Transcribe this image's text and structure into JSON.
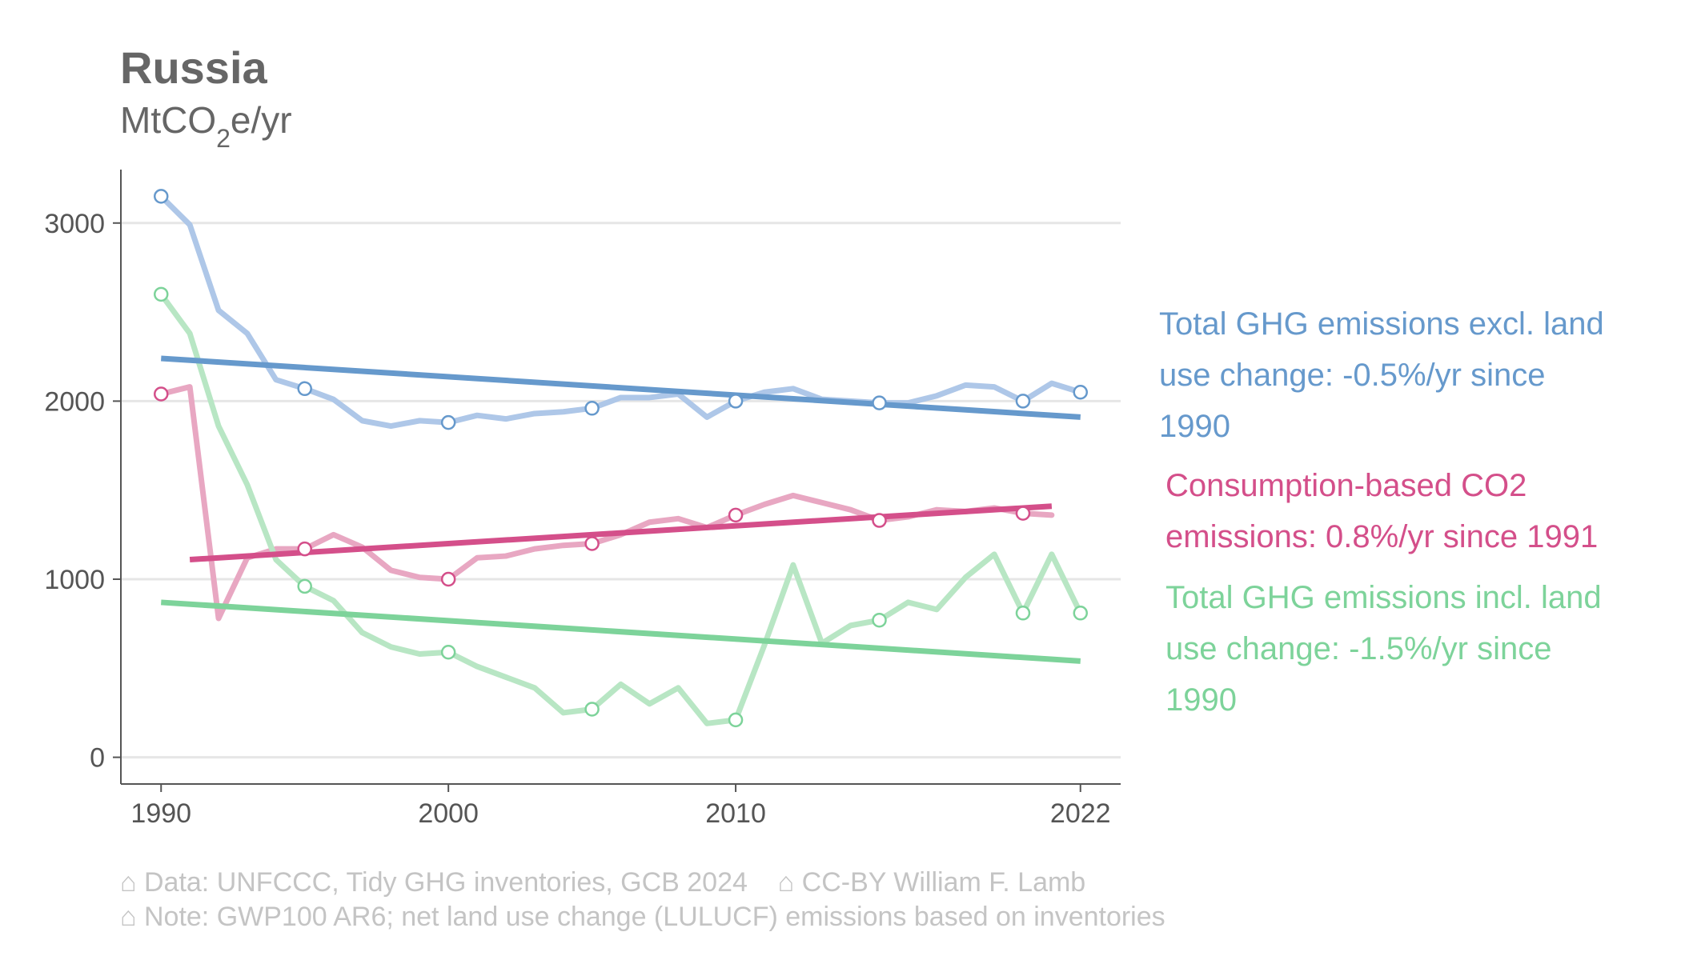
{
  "chart_data": {
    "type": "line",
    "title": "Russia",
    "subtitle": {
      "prefix": "MtCO",
      "subscript": "2",
      "suffix": "e/yr"
    },
    "x_ticks": [
      1990,
      2000,
      2010,
      2022
    ],
    "y_ticks": [
      0,
      1000,
      2000,
      3000
    ],
    "xlim": [
      1988.6,
      2023.4
    ],
    "ylim": [
      -150,
      3300
    ],
    "grid": "horizontal",
    "series": [
      {
        "name": "Total GHG emissions excl. land use change",
        "color": "#aec7e8",
        "x": [
          1990,
          1991,
          1992,
          1993,
          1994,
          1995,
          1996,
          1997,
          1998,
          1999,
          2000,
          2001,
          2002,
          2003,
          2004,
          2005,
          2006,
          2007,
          2008,
          2009,
          2010,
          2011,
          2012,
          2013,
          2014,
          2015,
          2016,
          2017,
          2018,
          2019,
          2020,
          2021,
          2022
        ],
        "values": [
          3150,
          2990,
          2510,
          2380,
          2120,
          2070,
          2010,
          1890,
          1860,
          1890,
          1880,
          1920,
          1900,
          1930,
          1940,
          1960,
          2020,
          2020,
          2040,
          1910,
          2000,
          2050,
          2070,
          2010,
          2000,
          1990,
          1990,
          2030,
          2090,
          2080,
          2000,
          2100,
          2050
        ],
        "markers": [
          1990,
          1995,
          2000,
          2005,
          2010,
          2015,
          2020,
          2022
        ]
      },
      {
        "name": "Consumption-based CO2 emissions",
        "color": "#e8a7c2",
        "x": [
          1990,
          1991,
          1992,
          1993,
          1994,
          1995,
          1996,
          1997,
          1998,
          1999,
          2000,
          2001,
          2002,
          2003,
          2004,
          2005,
          2006,
          2007,
          2008,
          2009,
          2010,
          2011,
          2012,
          2013,
          2014,
          2015,
          2016,
          2017,
          2018,
          2019,
          2020,
          2021
        ],
        "values": [
          2040,
          2080,
          780,
          1120,
          1170,
          1170,
          1250,
          1180,
          1050,
          1010,
          1000,
          1120,
          1130,
          1170,
          1190,
          1200,
          1250,
          1320,
          1340,
          1290,
          1360,
          1420,
          1470,
          1430,
          1390,
          1330,
          1350,
          1390,
          1380,
          1400,
          1370,
          1360
        ],
        "markers": [
          1990,
          1995,
          2000,
          2005,
          2010,
          2015,
          2020
        ]
      },
      {
        "name": "Total GHG emissions incl. land use change",
        "color": "#b8e6c4",
        "x": [
          1990,
          1991,
          1992,
          1993,
          1994,
          1995,
          1996,
          1997,
          1998,
          1999,
          2000,
          2001,
          2002,
          2003,
          2004,
          2005,
          2006,
          2007,
          2008,
          2009,
          2010,
          2011,
          2012,
          2013,
          2014,
          2015,
          2016,
          2017,
          2018,
          2019,
          2020,
          2021,
          2022
        ],
        "values": [
          2600,
          2380,
          1860,
          1530,
          1110,
          960,
          880,
          700,
          620,
          580,
          590,
          510,
          450,
          390,
          250,
          270,
          410,
          300,
          390,
          190,
          210,
          630,
          1080,
          640,
          740,
          770,
          870,
          830,
          1010,
          1140,
          810,
          1140,
          810
        ],
        "markers": [
          1990,
          1995,
          2000,
          2005,
          2010,
          2015,
          2020,
          2022
        ]
      }
    ],
    "trends": [
      {
        "label": "Total GHG emissions excl. land use change: -0.5%/yr since 1990",
        "color": "#6699cc",
        "x": [
          1990,
          2022
        ],
        "values": [
          2240,
          1910
        ]
      },
      {
        "label": "Consumption-based CO2 emissions: 0.8%/yr since 1991",
        "color": "#d44f8a",
        "x": [
          1991,
          2021
        ],
        "values": [
          1110,
          1410
        ]
      },
      {
        "label": "Total GHG emissions incl. land use change: -1.5%/yr since 1990",
        "color": "#7dd39a",
        "x": [
          1990,
          2022
        ],
        "values": [
          870,
          540
        ]
      }
    ]
  },
  "annotations": [
    {
      "lines": [
        "Total GHG emissions excl. land",
        "use change: -0.5%/yr since",
        "1990"
      ],
      "color": "#6699cc"
    },
    {
      "lines": [
        "Consumption-based CO2",
        "emissions: 0.8%/yr since 1991"
      ],
      "color": "#d44f8a"
    },
    {
      "lines": [
        "Total GHG emissions incl. land",
        "use change: -1.5%/yr since",
        "1990"
      ],
      "color": "#7dd39a"
    }
  ],
  "caption": {
    "line1": "⌂ Data: UNFCCC, Tidy GHG inventories, GCB 2024    ⌂ CC-BY William F. Lamb",
    "line2": "⌂ Note: GWP100 AR6; net land use change (LULUCF) emissions based on inventories"
  }
}
